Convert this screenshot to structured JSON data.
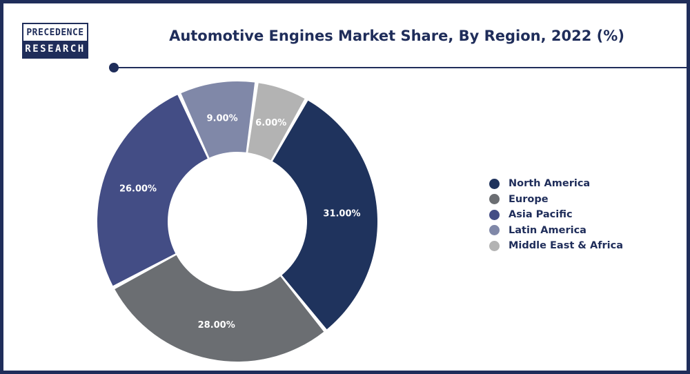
{
  "brand": {
    "line1": "PRECEDENCE",
    "line2": "RESEARCH"
  },
  "chart_data": {
    "type": "pie",
    "title": "Automotive Engines Market Share, By Region, 2022 (%)",
    "donut": true,
    "categories": [
      "North America",
      "Europe",
      "Asia Pacific",
      "Latin America",
      "Middle East & Africa"
    ],
    "values": [
      31,
      28,
      26,
      9,
      6
    ],
    "data_labels": [
      "31.00%",
      "28.00%",
      "26.00%",
      "9.00%",
      "6.00%"
    ],
    "colors": [
      "#1f335d",
      "#6b6e72",
      "#434d85",
      "#8088a8",
      "#b3b3b3"
    ],
    "legend_position": "right"
  }
}
